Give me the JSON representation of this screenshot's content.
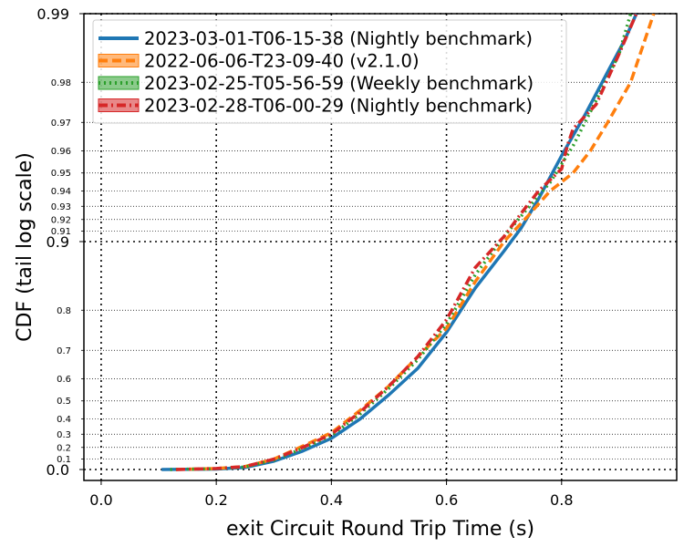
{
  "chart_data": {
    "type": "line",
    "xlabel": "exit Circuit Round Trip Time (s)",
    "ylabel": "CDF (tail log scale)",
    "xlim": [
      -0.03,
      1.0
    ],
    "x_ticks": [
      "0.0",
      "0.2",
      "0.4",
      "0.6",
      "0.8"
    ],
    "x_tick_values": [
      0.0,
      0.2,
      0.4,
      0.6,
      0.8
    ],
    "y_scale": "tail-log",
    "y_major_ticks": [
      {
        "value": 0.0,
        "label": "0.0"
      },
      {
        "value": 0.9,
        "label": "0.9"
      },
      {
        "value": 0.99,
        "label": "0.99"
      }
    ],
    "y_minor_ticks": [
      {
        "value": 0.1,
        "label": "0.1"
      },
      {
        "value": 0.2,
        "label": "0.2"
      },
      {
        "value": 0.3,
        "label": "0.3"
      },
      {
        "value": 0.4,
        "label": "0.4"
      },
      {
        "value": 0.5,
        "label": "0.5"
      },
      {
        "value": 0.6,
        "label": "0.6"
      },
      {
        "value": 0.7,
        "label": "0.7"
      },
      {
        "value": 0.8,
        "label": "0.8"
      },
      {
        "value": 0.91,
        "label": "0.91"
      },
      {
        "value": 0.92,
        "label": "0.92"
      },
      {
        "value": 0.93,
        "label": "0.93"
      },
      {
        "value": 0.94,
        "label": "0.94"
      },
      {
        "value": 0.95,
        "label": "0.95"
      },
      {
        "value": 0.96,
        "label": "0.96"
      },
      {
        "value": 0.97,
        "label": "0.97"
      },
      {
        "value": 0.98,
        "label": "0.98"
      }
    ],
    "grid": true,
    "legend_position": "top-left",
    "series": [
      {
        "name": "2023-03-01-T06-15-38 (Nightly benchmark)",
        "color": "#1f77b4",
        "dash": "solid",
        "points": [
          [
            0.105,
            0.0
          ],
          [
            0.2,
            0.005
          ],
          [
            0.25,
            0.02
          ],
          [
            0.3,
            0.08
          ],
          [
            0.35,
            0.17
          ],
          [
            0.4,
            0.27
          ],
          [
            0.45,
            0.4
          ],
          [
            0.5,
            0.53
          ],
          [
            0.55,
            0.64
          ],
          [
            0.6,
            0.75
          ],
          [
            0.65,
            0.84
          ],
          [
            0.7,
            0.89
          ],
          [
            0.73,
            0.913
          ],
          [
            0.76,
            0.935
          ],
          [
            0.8,
            0.958
          ],
          [
            0.84,
            0.972
          ],
          [
            0.88,
            0.982
          ],
          [
            0.91,
            0.987
          ],
          [
            0.93,
            0.99
          ]
        ]
      },
      {
        "name": "2022-06-06-T23-09-40 (v2.1.0)",
        "color": "#ff7f0e",
        "dash": "dashed",
        "points": [
          [
            0.13,
            0.0
          ],
          [
            0.2,
            0.01
          ],
          [
            0.25,
            0.03
          ],
          [
            0.3,
            0.1
          ],
          [
            0.35,
            0.21
          ],
          [
            0.4,
            0.31
          ],
          [
            0.45,
            0.45
          ],
          [
            0.5,
            0.57
          ],
          [
            0.55,
            0.68
          ],
          [
            0.6,
            0.76
          ],
          [
            0.65,
            0.85
          ],
          [
            0.7,
            0.9
          ],
          [
            0.74,
            0.922
          ],
          [
            0.78,
            0.94
          ],
          [
            0.82,
            0.95
          ],
          [
            0.85,
            0.96
          ],
          [
            0.88,
            0.97
          ],
          [
            0.92,
            0.98
          ],
          [
            0.96,
            0.99
          ]
        ]
      },
      {
        "name": "2023-02-25-T05-56-59 (Weekly benchmark)",
        "color": "#2ca02c",
        "dash": "dotted",
        "points": [
          [
            0.12,
            0.0
          ],
          [
            0.2,
            0.008
          ],
          [
            0.25,
            0.025
          ],
          [
            0.3,
            0.09
          ],
          [
            0.35,
            0.19
          ],
          [
            0.4,
            0.29
          ],
          [
            0.45,
            0.43
          ],
          [
            0.5,
            0.56
          ],
          [
            0.55,
            0.67
          ],
          [
            0.6,
            0.77
          ],
          [
            0.65,
            0.86
          ],
          [
            0.7,
            0.905
          ],
          [
            0.74,
            0.928
          ],
          [
            0.78,
            0.945
          ],
          [
            0.82,
            0.962
          ],
          [
            0.86,
            0.976
          ],
          [
            0.9,
            0.985
          ],
          [
            0.92,
            0.99
          ]
        ]
      },
      {
        "name": "2023-02-28-T06-00-29 (Nightly benchmark)",
        "color": "#d62728",
        "dash": "dashdot",
        "points": [
          [
            0.13,
            0.0
          ],
          [
            0.2,
            0.01
          ],
          [
            0.25,
            0.03
          ],
          [
            0.3,
            0.1
          ],
          [
            0.35,
            0.2
          ],
          [
            0.4,
            0.3
          ],
          [
            0.45,
            0.44
          ],
          [
            0.5,
            0.57
          ],
          [
            0.55,
            0.68
          ],
          [
            0.6,
            0.78
          ],
          [
            0.65,
            0.87
          ],
          [
            0.7,
            0.905
          ],
          [
            0.73,
            0.925
          ],
          [
            0.76,
            0.94
          ],
          [
            0.8,
            0.952
          ],
          [
            0.81,
            0.962
          ],
          [
            0.82,
            0.968
          ],
          [
            0.86,
            0.975
          ],
          [
            0.9,
            0.985
          ],
          [
            0.93,
            0.99
          ]
        ]
      }
    ]
  }
}
